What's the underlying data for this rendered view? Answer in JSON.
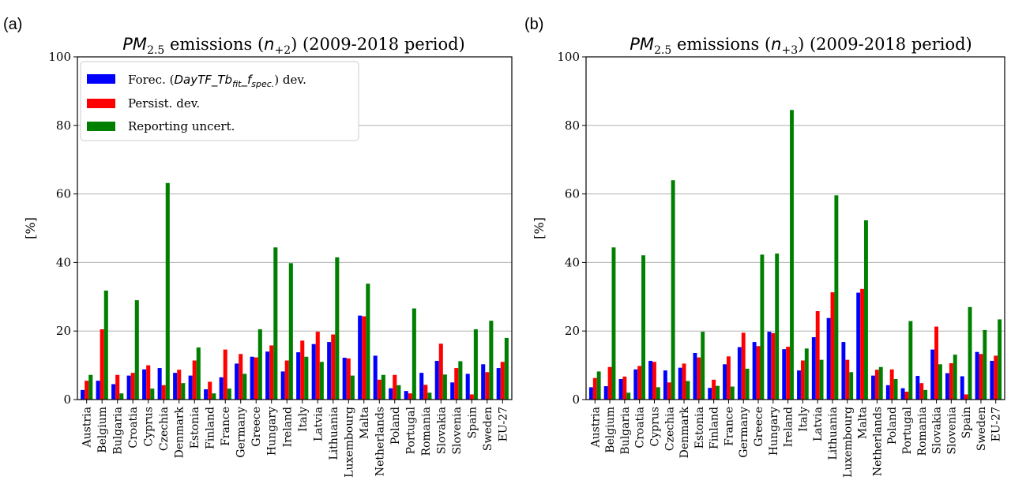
{
  "colors": {
    "forecast": "#0000ff",
    "persistence": "#ff0000",
    "reporting": "#008000",
    "grid": "#b0b0b0"
  },
  "chart_data": [
    {
      "type": "bar",
      "panel_label": "(a)",
      "title": {
        "prefix": "PM",
        "sub": "2.5",
        "middle": " emissions (",
        "n": "n",
        "nsub": "+2",
        "suffix": ") (2009-2018 period)"
      },
      "xlabel": "",
      "ylabel": "[%]",
      "ylim": [
        0,
        100
      ],
      "yticks": [
        "0",
        "20",
        "40",
        "60",
        "80",
        "100"
      ],
      "grid": "horizontal",
      "legend_position": "top-left",
      "legend": {
        "forecast": {
          "text1": "Forec. (",
          "italic": "DayTF_Tb",
          "sub": "fit",
          "italic2": "_f",
          "sub2": "spec.",
          "text2": ") dev."
        },
        "persistence": "Persist. dev.",
        "reporting": "Reporting uncert."
      },
      "categories": [
        "Austria",
        "Belgium",
        "Bulgaria",
        "Croatia",
        "Cyprus",
        "Czechia",
        "Denmark",
        "Estonia",
        "Finland",
        "France",
        "Germany",
        "Greece",
        "Hungary",
        "Ireland",
        "Italy",
        "Latvia",
        "Lithuania",
        "Luxembourg",
        "Malta",
        "Netherlands",
        "Poland",
        "Portugal",
        "Romania",
        "Slovakia",
        "Slovenia",
        "Spain",
        "Sweden",
        "EU-27"
      ],
      "series": [
        {
          "name": "Forec. (DayTF_Tbfit_fspec.) dev.",
          "values": [
            2.8,
            5.5,
            4.5,
            7.0,
            8.8,
            9.2,
            7.8,
            7.0,
            3.0,
            6.5,
            10.5,
            12.5,
            14.0,
            8.2,
            13.8,
            16.2,
            16.8,
            12.2,
            24.5,
            12.8,
            3.3,
            2.5,
            7.8,
            11.3,
            5.0,
            7.5,
            10.3,
            9.2
          ]
        },
        {
          "name": "Persist. dev.",
          "values": [
            5.5,
            20.5,
            7.2,
            7.8,
            10.0,
            4.2,
            8.7,
            11.4,
            5.2,
            14.6,
            13.3,
            12.3,
            15.8,
            11.4,
            17.2,
            19.8,
            19.0,
            12.0,
            24.3,
            5.8,
            7.2,
            1.8,
            4.3,
            16.3,
            9.2,
            1.5,
            8.0,
            11.0
          ]
        },
        {
          "name": "Reporting uncert.",
          "values": [
            7.2,
            31.8,
            1.8,
            29.0,
            3.2,
            63.2,
            4.8,
            15.2,
            1.8,
            3.2,
            7.5,
            20.5,
            44.4,
            39.8,
            12.5,
            11.0,
            41.5,
            7.0,
            33.8,
            7.2,
            4.2,
            26.6,
            2.0,
            7.3,
            11.2,
            20.5,
            23.0,
            18.0
          ]
        }
      ]
    },
    {
      "type": "bar",
      "panel_label": "(b)",
      "title": {
        "prefix": "PM",
        "sub": "2.5",
        "middle": " emissions (",
        "n": "n",
        "nsub": "+3",
        "suffix": ") (2009-2018 period)"
      },
      "xlabel": "",
      "ylabel": "[%]",
      "ylim": [
        0,
        100
      ],
      "yticks": [
        "0",
        "20",
        "40",
        "60",
        "80",
        "100"
      ],
      "grid": "horizontal",
      "categories": [
        "Austria",
        "Belgium",
        "Bulgaria",
        "Croatia",
        "Cyprus",
        "Czechia",
        "Denmark",
        "Estonia",
        "Finland",
        "France",
        "Germany",
        "Greece",
        "Hungary",
        "Ireland",
        "Italy",
        "Latvia",
        "Lithuania",
        "Luxembourg",
        "Malta",
        "Netherlands",
        "Poland",
        "Portugal",
        "Romania",
        "Slovakia",
        "Slovenia",
        "Spain",
        "Sweden",
        "EU-27"
      ],
      "series": [
        {
          "name": "Forec. (DayTF_Tbfit_fspec.) dev.",
          "values": [
            3.6,
            3.9,
            6.0,
            8.8,
            11.3,
            8.5,
            9.3,
            13.6,
            3.4,
            10.3,
            15.3,
            16.8,
            19.8,
            14.7,
            8.5,
            18.2,
            23.8,
            16.8,
            31.2,
            7.0,
            4.2,
            3.3,
            6.9,
            14.6,
            7.7,
            6.8,
            13.9,
            11.3
          ]
        },
        {
          "name": "Persist. dev.",
          "values": [
            6.3,
            9.5,
            6.7,
            9.8,
            11.0,
            5.0,
            10.5,
            12.3,
            5.8,
            12.6,
            19.5,
            15.6,
            19.4,
            15.4,
            11.4,
            25.8,
            31.3,
            11.6,
            32.3,
            8.7,
            8.8,
            2.3,
            4.8,
            21.3,
            10.6,
            1.5,
            13.3,
            12.8
          ]
        },
        {
          "name": "Reporting uncert.",
          "values": [
            8.2,
            44.4,
            2.0,
            42.1,
            3.6,
            64.0,
            5.4,
            19.8,
            4.0,
            3.8,
            9.0,
            42.3,
            42.6,
            84.5,
            14.9,
            11.6,
            59.6,
            8.0,
            52.3,
            9.5,
            6.0,
            22.9,
            2.8,
            10.3,
            13.1,
            27.0,
            20.3,
            23.4
          ]
        }
      ]
    }
  ]
}
